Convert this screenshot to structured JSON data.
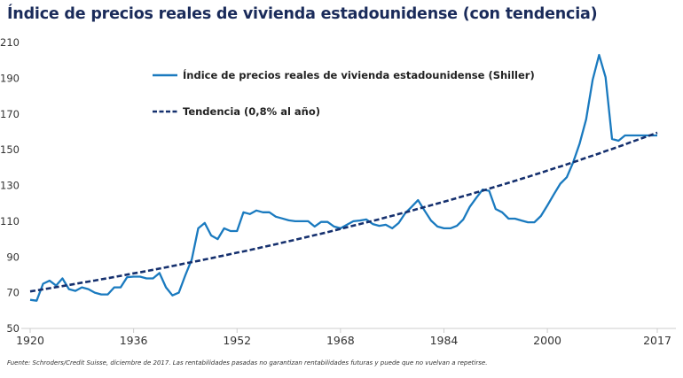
{
  "title": "Índice de precios reales de vivienda estadounidense (con tendencia)",
  "footnote": "Fuente: Schroders/Credit Suisse, diciembre de 2017. Las rentabilidades pasadas no garantizan rentabilidades futuras y puede que no vuelvan a repetirse.",
  "colors": {
    "shiller": "#1a7abf",
    "trend": "#15306e",
    "title": "#1a2b5a",
    "axis": "#cccccc"
  },
  "chart_data": {
    "type": "line",
    "title": "Índice de precios reales de vivienda estadounidense (con tendencia)",
    "xlabel": "",
    "ylabel": "",
    "xlim": [
      1920,
      2017
    ],
    "ylim": [
      50,
      210
    ],
    "grid": false,
    "legend_position": "top-center",
    "x_ticks": [
      "1920",
      "1936",
      "1952",
      "1968",
      "1984",
      "2000",
      "2017"
    ],
    "y_ticks": [
      "50",
      "70",
      "90",
      "110",
      "130",
      "150",
      "170",
      "190",
      "210"
    ],
    "x": [
      1920,
      1921,
      1922,
      1923,
      1924,
      1925,
      1926,
      1927,
      1928,
      1929,
      1930,
      1931,
      1932,
      1933,
      1934,
      1935,
      1936,
      1937,
      1938,
      1939,
      1940,
      1941,
      1942,
      1943,
      1944,
      1945,
      1946,
      1947,
      1948,
      1949,
      1950,
      1951,
      1952,
      1953,
      1954,
      1955,
      1956,
      1957,
      1958,
      1959,
      1960,
      1961,
      1962,
      1963,
      1964,
      1965,
      1966,
      1967,
      1968,
      1969,
      1970,
      1971,
      1972,
      1973,
      1974,
      1975,
      1976,
      1977,
      1978,
      1979,
      1980,
      1981,
      1982,
      1983,
      1984,
      1985,
      1986,
      1987,
      1988,
      1989,
      1990,
      1991,
      1992,
      1993,
      1994,
      1995,
      1996,
      1997,
      1998,
      1999,
      2000,
      2001,
      2002,
      2003,
      2004,
      2005,
      2006,
      2007,
      2008,
      2009,
      2010,
      2011,
      2012,
      2013,
      2014,
      2015,
      2016,
      2017
    ],
    "series": [
      {
        "name": "Índice de precios reales de vivienda estadounidense (Shiller)",
        "style": "solid",
        "values": [
          66,
          65.5,
          75,
          76.7,
          74,
          78,
          72,
          71,
          73,
          72,
          70,
          69,
          69,
          73,
          73,
          78.7,
          79,
          79,
          78,
          78,
          81,
          73,
          68.5,
          70,
          79.7,
          88.6,
          106,
          109,
          102,
          100,
          106,
          104.5,
          104.5,
          115,
          114,
          116,
          115,
          115,
          112.5,
          111.5,
          110.5,
          110,
          110,
          110,
          107,
          109.6,
          109.6,
          107,
          106,
          108,
          110,
          110.4,
          111,
          108.4,
          107.4,
          108,
          106,
          109,
          114.4,
          118,
          121.8,
          116,
          110.4,
          107,
          106,
          106,
          107.4,
          111,
          118,
          123,
          127.7,
          127,
          116.8,
          115,
          111.4,
          111.4,
          110.4,
          109.4,
          109.4,
          112.9,
          118.8,
          125,
          131,
          134.6,
          143,
          153.5,
          167,
          189,
          203,
          190.6,
          156,
          155,
          158,
          158,
          158,
          158,
          158,
          158
        ]
      },
      {
        "name": "Tendencia (0,8% al año)",
        "style": "dashed",
        "values": [
          70.7,
          71.3,
          71.9,
          72.5,
          73.1,
          73.7,
          74.3,
          74.9,
          75.6,
          76.2,
          76.8,
          77.5,
          78.1,
          78.8,
          79.4,
          80.1,
          80.8,
          81.4,
          82.1,
          82.8,
          83.5,
          84.2,
          84.9,
          85.6,
          86.4,
          87.1,
          87.8,
          88.6,
          89.3,
          90.1,
          90.8,
          91.6,
          92.4,
          93.1,
          93.9,
          94.7,
          95.5,
          96.3,
          97.1,
          98,
          98.8,
          99.6,
          100.5,
          101.3,
          102.2,
          103,
          103.9,
          104.8,
          105.7,
          106.6,
          107.5,
          108.4,
          109.3,
          110.2,
          111.1,
          112.1,
          113,
          114,
          114.9,
          115.9,
          116.9,
          117.9,
          118.9,
          119.9,
          120.9,
          121.9,
          122.9,
          124,
          125,
          126.1,
          127.1,
          128.2,
          129.3,
          130.4,
          131.5,
          132.6,
          133.7,
          134.8,
          136,
          137.1,
          138.3,
          139.5,
          140.6,
          141.8,
          143,
          144.2,
          145.5,
          146.7,
          147.9,
          149.2,
          150.4,
          151.7,
          153,
          154.3,
          155.6,
          156.9,
          158.2,
          159.5
        ]
      }
    ]
  }
}
